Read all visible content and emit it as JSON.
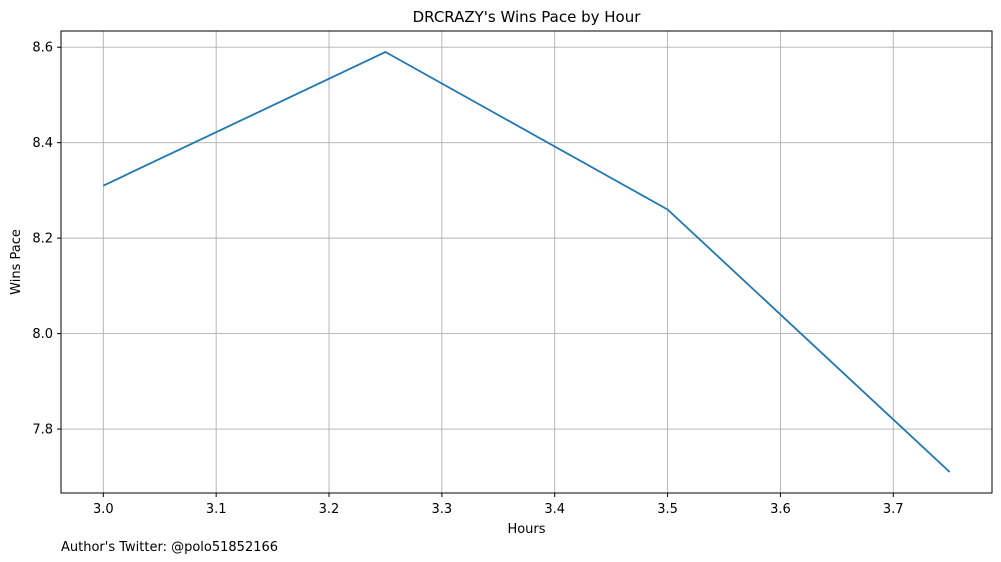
{
  "chart_data": {
    "type": "line",
    "title": "DRCRAZY's Wins Pace by Hour",
    "xlabel": "Hours",
    "ylabel": "Wins Pace",
    "x": [
      3.0,
      3.25,
      3.5,
      3.75
    ],
    "series": [
      {
        "values": [
          8.31,
          8.59,
          8.26,
          7.71
        ],
        "color": "#1f77b4"
      }
    ],
    "xticks": [
      "3.0",
      "3.1",
      "3.2",
      "3.3",
      "3.4",
      "3.5",
      "3.6",
      "3.7"
    ],
    "yticks": [
      "7.8",
      "8.0",
      "8.2",
      "8.4",
      "8.6"
    ],
    "xlim": [
      2.9625,
      3.7875
    ],
    "ylim": [
      7.666,
      8.634
    ],
    "grid": true
  },
  "footer": {
    "author_note": "Author's Twitter: @polo51852166"
  }
}
